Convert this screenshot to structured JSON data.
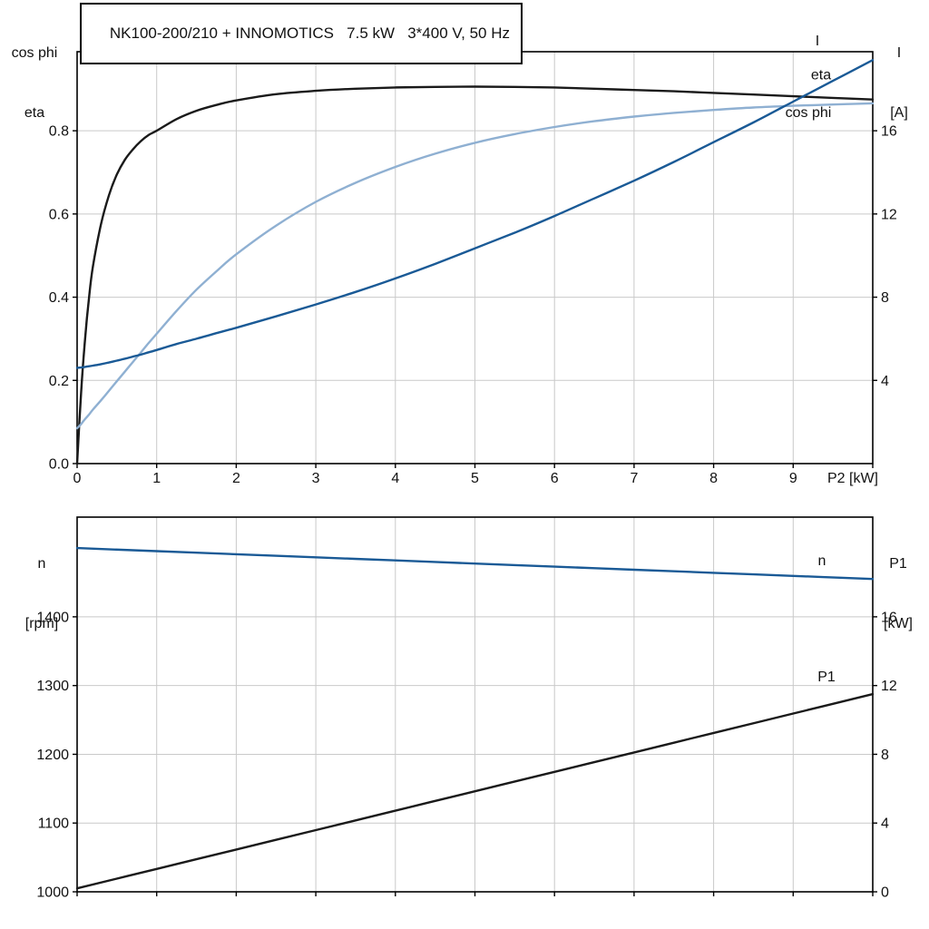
{
  "colors": {
    "black_curve": "#1a1a1a",
    "dark_blue": "#1a5a96",
    "light_blue": "#8fb0d2",
    "grid": "#c9c9c9",
    "frame": "#000000"
  },
  "chart_data": [
    {
      "id": "upper",
      "type": "line",
      "title": "NK100-200/210 + INNOMOTICS   7.5 kW   3*400 V, 50 Hz",
      "grid": true,
      "x_axis": {
        "label": "P2 [kW]",
        "range": [
          0,
          10
        ],
        "tick_values": [
          0,
          1,
          2,
          3,
          4,
          5,
          6,
          7,
          8,
          9,
          10
        ],
        "tick_labels": [
          "0",
          "1",
          "2",
          "3",
          "4",
          "5",
          "6",
          "7",
          "8",
          "9",
          ""
        ]
      },
      "left_axis": {
        "label_line1": "cos phi",
        "label_line2": "eta",
        "range": [
          0,
          0.99
        ],
        "tick_values": [
          0,
          0.2,
          0.4,
          0.6,
          0.8
        ],
        "tick_labels": [
          "0.0",
          "0.2",
          "0.4",
          "0.6",
          "0.8"
        ]
      },
      "right_axis": {
        "label_line1": "I",
        "label_line2": "[A]",
        "range": [
          0,
          19.8
        ],
        "tick_values": [
          4,
          8,
          12,
          16
        ],
        "tick_labels": [
          "4",
          "8",
          "12",
          "16"
        ]
      },
      "x": [
        0,
        0.05,
        0.1,
        0.15,
        0.2,
        0.3,
        0.4,
        0.5,
        0.6,
        0.7,
        0.8,
        0.9,
        1,
        1.25,
        1.5,
        1.75,
        2,
        2.5,
        3,
        3.5,
        4,
        4.5,
        5,
        5.5,
        6,
        6.5,
        7,
        7.5,
        8,
        8.5,
        9,
        9.5,
        10
      ],
      "series": [
        {
          "name": "eta",
          "label": "eta",
          "axis": "left",
          "color": "#1a1a1a",
          "label_offset": [
            -57,
            -22
          ],
          "values": [
            0,
            0.17,
            0.3,
            0.4,
            0.475,
            0.575,
            0.645,
            0.695,
            0.73,
            0.755,
            0.775,
            0.79,
            0.8,
            0.828,
            0.848,
            0.862,
            0.873,
            0.888,
            0.896,
            0.901,
            0.904,
            0.9055,
            0.906,
            0.9055,
            0.904,
            0.901,
            0.898,
            0.895,
            0.891,
            0.887,
            0.883,
            0.879,
            0.875
          ]
        },
        {
          "name": "cos phi",
          "label": "cos phi",
          "axis": "left",
          "color": "#8fb0d2",
          "label_offset": [
            -71,
            15
          ],
          "values": [
            0.085,
            0.095,
            0.107,
            0.118,
            0.13,
            0.152,
            0.175,
            0.198,
            0.221,
            0.244,
            0.267,
            0.29,
            0.312,
            0.367,
            0.418,
            0.462,
            0.503,
            0.572,
            0.629,
            0.675,
            0.713,
            0.745,
            0.771,
            0.792,
            0.809,
            0.823,
            0.834,
            0.843,
            0.85,
            0.856,
            0.86,
            0.863,
            0.866
          ]
        },
        {
          "name": "I",
          "label": "I",
          "axis": "right",
          "color": "#1a5a96",
          "label_offset": [
            -61,
            -16
          ],
          "values": [
            4.6,
            4.62,
            4.65,
            4.68,
            4.71,
            4.78,
            4.86,
            4.95,
            5.04,
            5.14,
            5.24,
            5.35,
            5.46,
            5.75,
            6.0,
            6.27,
            6.53,
            7.08,
            7.65,
            8.25,
            8.9,
            9.6,
            10.35,
            11.1,
            11.9,
            12.75,
            13.6,
            14.5,
            15.45,
            16.4,
            17.4,
            18.4,
            19.4
          ]
        }
      ]
    },
    {
      "id": "lower",
      "type": "line",
      "title": "",
      "grid": true,
      "x_axis": {
        "label": "",
        "range": [
          0,
          10
        ],
        "tick_values": [
          0,
          1,
          2,
          3,
          4,
          5,
          6,
          7,
          8,
          9,
          10
        ],
        "tick_labels": []
      },
      "left_axis": {
        "label_line1": "n",
        "label_line2": "[rpm]",
        "range": [
          1000,
          1545
        ],
        "tick_values": [
          1000,
          1100,
          1200,
          1300,
          1400
        ],
        "tick_labels": [
          "1000",
          "1100",
          "1200",
          "1300",
          "1400"
        ]
      },
      "right_axis": {
        "label_line1": "P1",
        "label_line2": "[kW]",
        "range": [
          0,
          21.8
        ],
        "tick_values": [
          0,
          4,
          8,
          12,
          16
        ],
        "tick_labels": [
          "0",
          "4",
          "8",
          "12",
          "16"
        ]
      },
      "x": [
        0,
        1,
        2,
        3,
        4,
        5,
        6,
        7,
        8,
        9,
        10
      ],
      "series": [
        {
          "name": "n",
          "label": "n",
          "axis": "left",
          "color": "#1a5a96",
          "label_offset": [
            -56,
            -15
          ],
          "values": [
            1500,
            1495.5,
            1491,
            1486.5,
            1482,
            1477.5,
            1473,
            1468.5,
            1464,
            1459.5,
            1455
          ]
        },
        {
          "name": "P1",
          "label": "P1",
          "axis": "right",
          "color": "#1a1a1a",
          "label_offset": [
            -51,
            -14
          ],
          "values": [
            0.2,
            1.33,
            2.46,
            3.59,
            4.72,
            5.85,
            6.98,
            8.11,
            9.24,
            10.37,
            11.5
          ]
        }
      ]
    }
  ]
}
